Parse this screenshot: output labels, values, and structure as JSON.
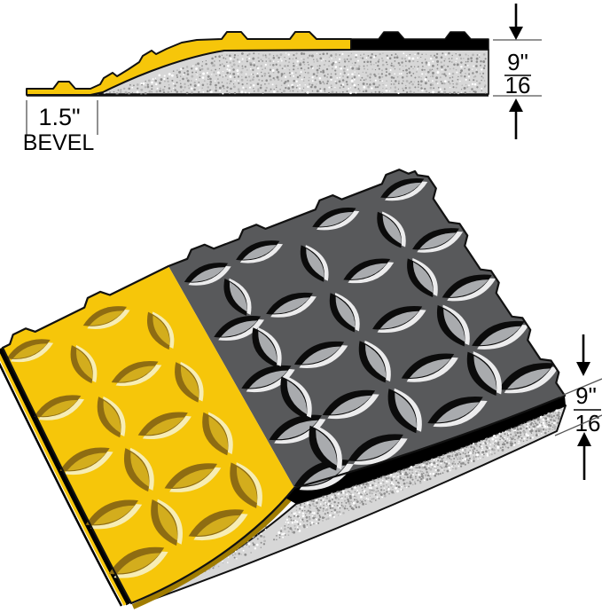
{
  "colors": {
    "yellow": "#F6C60A",
    "yellow_tread_shadow": "#8E6C12",
    "yellow_tread_mid": "#D3AD1D",
    "yellow_tread_highlight": "#F7EDB4",
    "bevel_side": "#A07C00",
    "gray_surface": "#58595B",
    "gray_tread_shadow": "#0B0B0B",
    "gray_tread_mid": "#A9ABAE",
    "gray_tread_highlight": "#ECECED",
    "black": "#000000",
    "foam_base": "#D7D7D7",
    "foam_speckle_dark": "#8E8E8E",
    "foam_speckle_mid": "#B5B5B5",
    "foam_speckle_light": "#FFFFFF",
    "outline": "#111111",
    "dimension_line": "#555555",
    "label_text": "#000000"
  },
  "cross_section_view": {
    "bevel": {
      "width_label": "1.5\"",
      "name_label": "BEVEL"
    },
    "thickness": {
      "numerator": "9\"",
      "denominator": "16"
    }
  },
  "perspective_view": {
    "thickness": {
      "numerator": "9\"",
      "denominator": "16"
    }
  },
  "icons": {
    "arrow_down": "arrow-down-icon",
    "arrow_up": "arrow-up-icon"
  }
}
